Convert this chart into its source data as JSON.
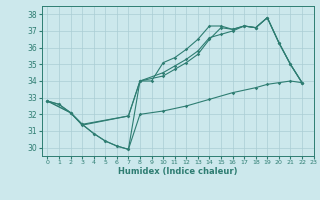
{
  "xlabel": "Humidex (Indice chaleur)",
  "bg_color": "#cce8ec",
  "line_color": "#2e7d72",
  "grid_color": "#aacdd4",
  "xlim": [
    -0.5,
    23
  ],
  "ylim": [
    29.5,
    38.5
  ],
  "xticks": [
    0,
    1,
    2,
    3,
    4,
    5,
    6,
    7,
    8,
    9,
    10,
    11,
    12,
    13,
    14,
    15,
    16,
    17,
    18,
    19,
    20,
    21,
    22,
    23
  ],
  "yticks": [
    30,
    31,
    32,
    33,
    34,
    35,
    36,
    37,
    38
  ],
  "series1": [
    [
      0,
      32.8
    ],
    [
      1,
      32.6
    ],
    [
      2,
      32.1
    ],
    [
      3,
      31.4
    ],
    [
      4,
      30.85
    ],
    [
      5,
      30.4
    ],
    [
      6,
      30.1
    ],
    [
      7,
      29.9
    ],
    [
      8,
      34.0
    ],
    [
      9,
      34.0
    ],
    [
      10,
      35.1
    ],
    [
      11,
      35.4
    ],
    [
      12,
      35.9
    ],
    [
      13,
      36.5
    ],
    [
      14,
      37.3
    ],
    [
      15,
      37.3
    ],
    [
      16,
      37.1
    ],
    [
      17,
      37.3
    ],
    [
      18,
      37.2
    ],
    [
      19,
      37.8
    ],
    [
      20,
      36.3
    ],
    [
      21,
      35.0
    ],
    [
      22,
      33.9
    ]
  ],
  "series2": [
    [
      0,
      32.8
    ],
    [
      2,
      32.1
    ],
    [
      3,
      31.4
    ],
    [
      7,
      31.9
    ],
    [
      8,
      34.0
    ],
    [
      10,
      34.5
    ],
    [
      11,
      34.9
    ],
    [
      12,
      35.3
    ],
    [
      13,
      35.8
    ],
    [
      14,
      36.6
    ],
    [
      15,
      36.8
    ],
    [
      16,
      37.0
    ],
    [
      17,
      37.3
    ],
    [
      18,
      37.2
    ],
    [
      19,
      37.8
    ],
    [
      20,
      36.3
    ],
    [
      21,
      35.0
    ],
    [
      22,
      33.9
    ]
  ],
  "series3": [
    [
      0,
      32.8
    ],
    [
      2,
      32.1
    ],
    [
      3,
      31.35
    ],
    [
      7,
      31.9
    ],
    [
      8,
      34.0
    ],
    [
      10,
      34.3
    ],
    [
      11,
      34.7
    ],
    [
      12,
      35.1
    ],
    [
      13,
      35.6
    ],
    [
      14,
      36.5
    ],
    [
      15,
      37.2
    ],
    [
      16,
      37.1
    ],
    [
      17,
      37.3
    ],
    [
      18,
      37.2
    ],
    [
      19,
      37.8
    ],
    [
      20,
      36.3
    ],
    [
      21,
      35.0
    ],
    [
      22,
      33.9
    ]
  ],
  "series4": [
    [
      0,
      32.8
    ],
    [
      1,
      32.6
    ],
    [
      2,
      32.1
    ],
    [
      3,
      31.4
    ],
    [
      4,
      30.85
    ],
    [
      5,
      30.4
    ],
    [
      6,
      30.1
    ],
    [
      7,
      29.9
    ],
    [
      8,
      32.0
    ],
    [
      10,
      32.2
    ],
    [
      12,
      32.5
    ],
    [
      14,
      32.9
    ],
    [
      16,
      33.3
    ],
    [
      18,
      33.6
    ],
    [
      19,
      33.8
    ],
    [
      20,
      33.9
    ],
    [
      21,
      34.0
    ],
    [
      22,
      33.9
    ]
  ]
}
